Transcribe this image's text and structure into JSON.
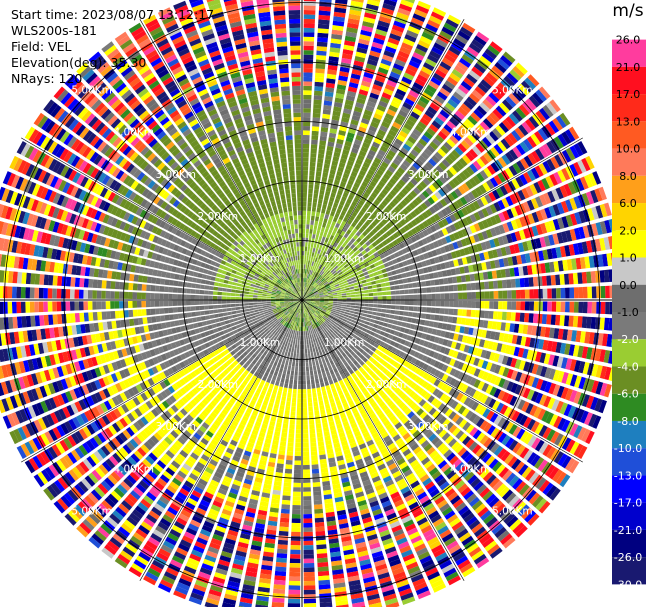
{
  "header": {
    "start_time": "Start time: 2023/08/07 13:12:17",
    "instrument": "WLS200s-181",
    "field": "Field: VEL",
    "elevation": "Elevation(deg): 35.30",
    "nrays": "NRays: 120"
  },
  "colorbar": {
    "unit": "m/s",
    "ticks": [
      "26.0",
      "21.0",
      "17.0",
      "13.0",
      "10.0",
      "8.0",
      "6.0",
      "2.0",
      "1.0",
      "0.0",
      "-1.0",
      "-2.0",
      "-4.0",
      "-6.0",
      "-8.0",
      "-10.0",
      "-13.0",
      "-17.0",
      "-21.0",
      "-26.0",
      "-30.0"
    ],
    "colors": [
      "#ff3c9e",
      "#ff0f1f",
      "#ff2a1a",
      "#ff5a22",
      "#ff7a5a",
      "#ff9f1a",
      "#ffd400",
      "#ffff00",
      "#c8c8c8",
      "#6e6e6e",
      "#7a7a7a",
      "#9acd32",
      "#6b8e23",
      "#2e8b22",
      "#1e7fbf",
      "#1f4fd8",
      "#0000ff",
      "#0000cd",
      "#000080",
      "#191970"
    ]
  },
  "chart_data": {
    "type": "ppi",
    "field": "VEL",
    "units": "m/s",
    "elevation_deg": 35.3,
    "nrays": 120,
    "range_rings_km": [
      1.0,
      2.0,
      3.0,
      4.0,
      5.0
    ],
    "ring_labels": [
      "1.00Km",
      "2.00Km",
      "3.00Km",
      "4.00Km",
      "5.00Km"
    ],
    "radial_lines_deg": [
      0,
      30,
      60,
      90,
      120,
      150,
      180,
      210,
      240,
      270,
      300,
      330
    ],
    "color_scale_min": -30.0,
    "color_scale_max": 30.0,
    "pattern": [
      {
        "range_km": [
          0.0,
          0.5
        ],
        "description": "near-zero mixed",
        "dominant_value": -3.0
      },
      {
        "range_km": [
          0.5,
          1.5
        ],
        "north_half": -2.0,
        "south_half": 0.0
      },
      {
        "range_km": [
          1.5,
          2.6
        ],
        "north_half": -3.0,
        "south_half": 2.5
      },
      {
        "range_km": [
          2.6,
          3.6
        ],
        "description": "noisy mixed",
        "dominant_value": 0.0
      },
      {
        "range_km": [
          3.6,
          5.5
        ],
        "description": "noise",
        "dominant_value": null
      }
    ]
  }
}
